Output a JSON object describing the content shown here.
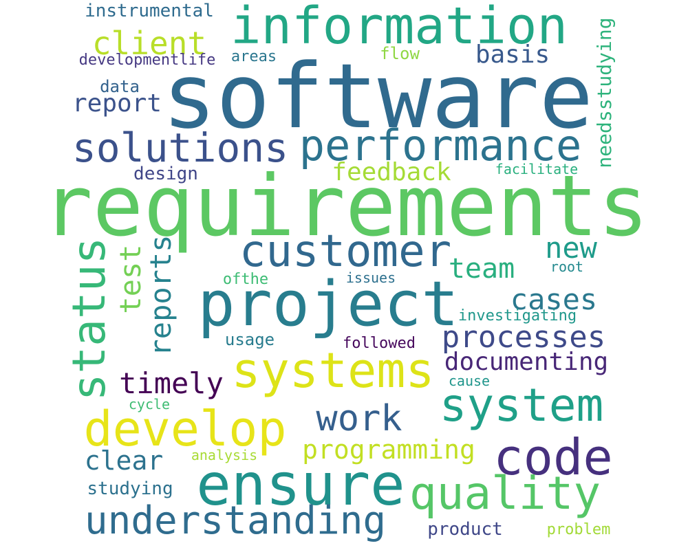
{
  "words": [
    {
      "text": "software",
      "color": "#306a8e"
    },
    {
      "text": "requirements",
      "color": "#5cc863"
    },
    {
      "text": "information",
      "color": "#22a785"
    },
    {
      "text": "performance",
      "color": "#2c738e"
    },
    {
      "text": "solutions",
      "color": "#3b518b"
    },
    {
      "text": "project",
      "color": "#287d8e"
    },
    {
      "text": "customer",
      "color": "#31688e"
    },
    {
      "text": "ensure",
      "color": "#20928c"
    },
    {
      "text": "systems",
      "color": "#dde318"
    },
    {
      "text": "system",
      "color": "#1fa088"
    },
    {
      "text": "develop",
      "color": "#e7e419"
    },
    {
      "text": "code",
      "color": "#46307e"
    },
    {
      "text": "quality",
      "color": "#55c667"
    },
    {
      "text": "understanding",
      "color": "#2f6c8e"
    },
    {
      "text": "status",
      "color": "#37b878"
    },
    {
      "text": "processes",
      "color": "#3e4a89"
    },
    {
      "text": "work",
      "color": "#355f8d"
    },
    {
      "text": "client",
      "color": "#b8de29"
    },
    {
      "text": "documenting",
      "color": "#482777"
    },
    {
      "text": "timely",
      "color": "#440154"
    },
    {
      "text": "cases",
      "color": "#2a788e"
    },
    {
      "text": "reports",
      "color": "#26828e"
    },
    {
      "text": "test",
      "color": "#74d055"
    },
    {
      "text": "programming",
      "color": "#c2df23"
    },
    {
      "text": "team",
      "color": "#29af7f"
    },
    {
      "text": "new",
      "color": "#1e9b8a"
    },
    {
      "text": "clear",
      "color": "#2c728e"
    },
    {
      "text": "feedback",
      "color": "#a5db36"
    },
    {
      "text": "basis",
      "color": "#38598c"
    },
    {
      "text": "report",
      "color": "#3b528b"
    },
    {
      "text": "needsstudying",
      "color": "#2eb37c"
    },
    {
      "text": "instrumental",
      "color": "#2f6b8e"
    },
    {
      "text": "design",
      "color": "#404688"
    },
    {
      "text": "studying",
      "color": "#2c718e"
    },
    {
      "text": "product",
      "color": "#3f4788"
    },
    {
      "text": "problem",
      "color": "#a2da37"
    },
    {
      "text": "analysis",
      "color": "#a8db34"
    },
    {
      "text": "usage",
      "color": "#287c8e"
    },
    {
      "text": "followed",
      "color": "#46085c"
    },
    {
      "text": "investigating",
      "color": "#1f978b"
    },
    {
      "text": "data",
      "color": "#33628d"
    },
    {
      "text": "flow",
      "color": "#8fd744"
    },
    {
      "text": "areas",
      "color": "#2a768e"
    },
    {
      "text": "developmentlife",
      "color": "#453882"
    },
    {
      "text": "ofthe",
      "color": "#3dbc74"
    },
    {
      "text": "issues",
      "color": "#2d708e"
    },
    {
      "text": "root",
      "color": "#23898e"
    },
    {
      "text": "cause",
      "color": "#1f958b"
    },
    {
      "text": "cycle",
      "color": "#3fbc73"
    },
    {
      "text": "facilitate",
      "color": "#2ab07f"
    }
  ]
}
